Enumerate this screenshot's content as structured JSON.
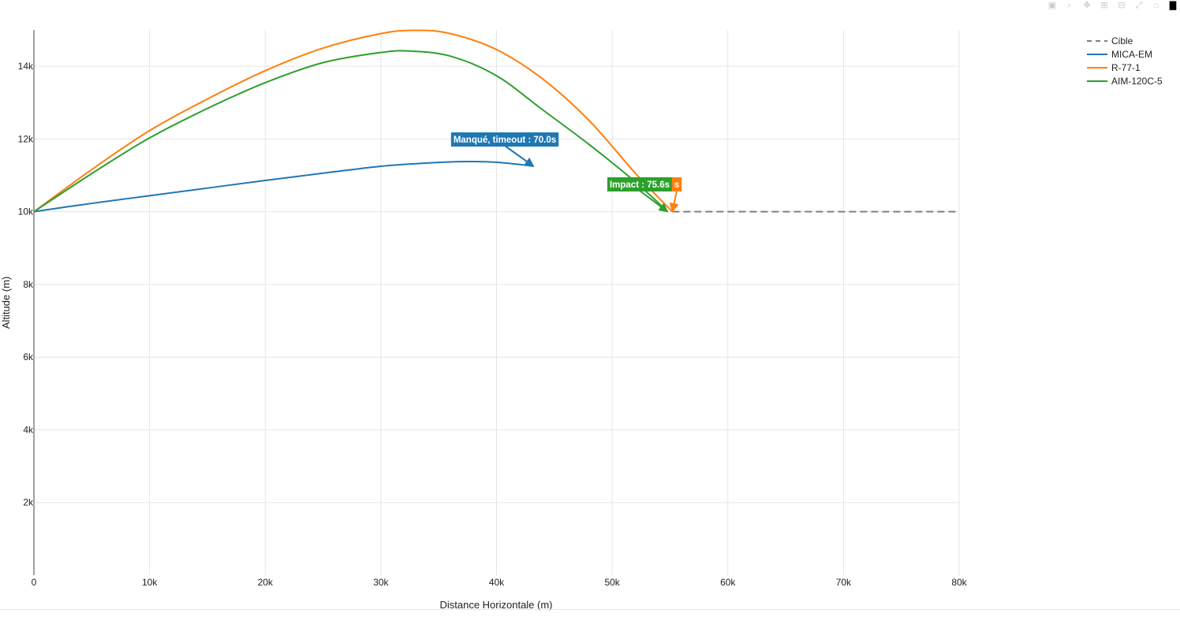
{
  "toolbar": {
    "buttons": [
      {
        "icon": "camera-icon",
        "glyph": "▣"
      },
      {
        "icon": "zoom-icon",
        "glyph": "⌕"
      },
      {
        "icon": "pan-icon",
        "glyph": "✥"
      },
      {
        "icon": "zoom-in-icon",
        "glyph": "⊞"
      },
      {
        "icon": "zoom-out-icon",
        "glyph": "⊟"
      },
      {
        "icon": "autoscale-icon",
        "glyph": "⤢"
      },
      {
        "icon": "reset-axes-icon",
        "glyph": "⌂"
      },
      {
        "icon": "plotly-logo-icon",
        "glyph": "▇"
      }
    ]
  },
  "chart_data": {
    "type": "line",
    "title": "",
    "xlabel": "Distance Horizontale (m)",
    "ylabel": "Altitude (m)",
    "xlim": [
      0,
      80000
    ],
    "ylim": [
      0,
      15000
    ],
    "xticks": [
      0,
      10000,
      20000,
      30000,
      40000,
      50000,
      60000,
      70000,
      80000
    ],
    "xtick_labels": [
      "0",
      "10k",
      "20k",
      "30k",
      "40k",
      "50k",
      "60k",
      "70k",
      "80k"
    ],
    "yticks": [
      2000,
      4000,
      6000,
      8000,
      10000,
      12000,
      14000
    ],
    "ytick_labels": [
      "2k",
      "4k",
      "6k",
      "8k",
      "10k",
      "12k",
      "14k"
    ],
    "grid": true,
    "legend_position": "top-right",
    "series": [
      {
        "name": "Cible",
        "color": "#7f7f7f",
        "dash": "dash",
        "x": [
          55200,
          80000
        ],
        "y": [
          10000,
          10000
        ]
      },
      {
        "name": "MICA-EM",
        "color": "#1f77b4",
        "x": [
          0,
          5000,
          10000,
          15000,
          20000,
          25000,
          30000,
          33000,
          36000,
          38000,
          40000,
          42000,
          43200
        ],
        "y": [
          10000,
          10230,
          10440,
          10650,
          10860,
          11060,
          11250,
          11320,
          11370,
          11380,
          11360,
          11300,
          11250
        ]
      },
      {
        "name": "R-77-1",
        "color": "#ff7f0e",
        "x": [
          0,
          5000,
          10000,
          15000,
          20000,
          25000,
          30000,
          33000,
          36000,
          40000,
          44000,
          48000,
          52000,
          55200
        ],
        "y": [
          10000,
          11160,
          12230,
          13100,
          13880,
          14500,
          14900,
          14990,
          14900,
          14460,
          13650,
          12510,
          11060,
          10000
        ]
      },
      {
        "name": "AIM-120C-5",
        "color": "#2ca02c",
        "x": [
          0,
          5000,
          10000,
          15000,
          20000,
          25000,
          30000,
          32500,
          36000,
          40000,
          44000,
          48000,
          52000,
          54800
        ],
        "y": [
          10000,
          11050,
          12030,
          12840,
          13550,
          14100,
          14380,
          14420,
          14280,
          13740,
          12800,
          11850,
          10820,
          10000
        ]
      }
    ],
    "annotations": [
      {
        "text": "Manqué, timeout : 70.0s",
        "series": "MICA-EM",
        "x": 43200,
        "y": 11250,
        "bg": "#1f77b4"
      },
      {
        "text": "Impact : 75.6s",
        "series": "AIM-120C-5",
        "x": 54800,
        "y": 10000,
        "bg": "#2ca02c"
      },
      {
        "text": "s",
        "series": "R-77-1",
        "x": 55200,
        "y": 10000,
        "bg": "#ff7f0e"
      }
    ]
  }
}
